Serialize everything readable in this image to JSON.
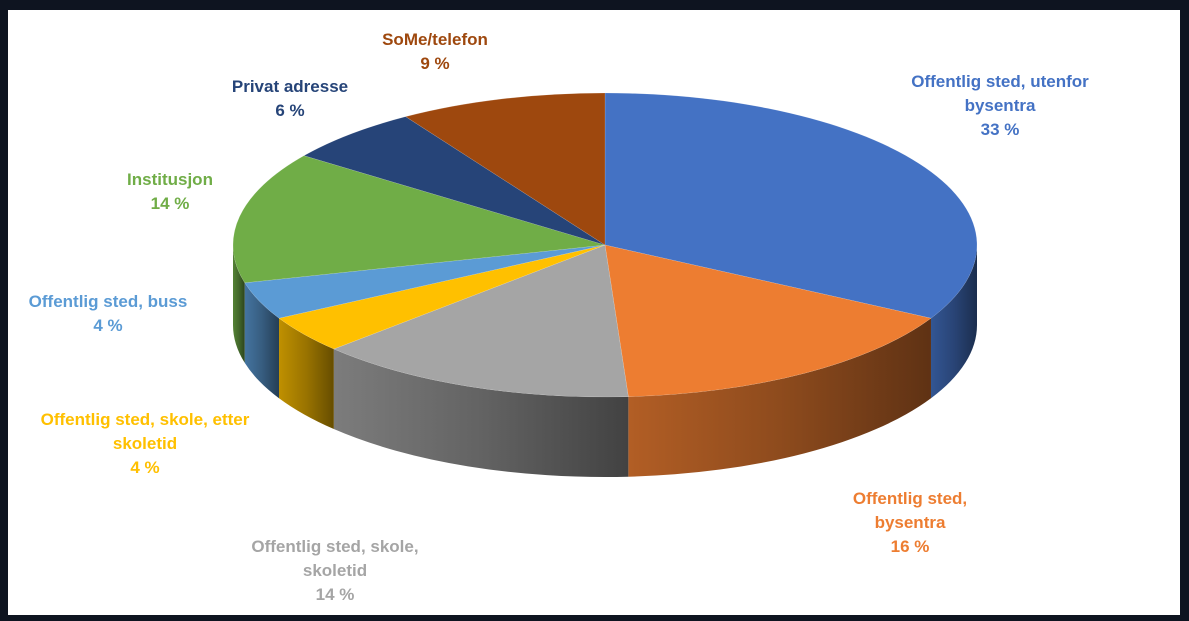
{
  "chart_data": {
    "type": "pie",
    "categories": [
      "Offentlig sted, utenfor bysentra",
      "Offentlig sted, bysentra",
      "Offentlig sted, skole, skoletid",
      "Offentlig sted, skole, etter skoletid",
      "Offentlig sted, buss",
      "Institusjon",
      "Privat adresse",
      "SoMe/telefon"
    ],
    "values": [
      33,
      16,
      14,
      4,
      4,
      14,
      6,
      9
    ],
    "value_labels": [
      "33 %",
      "16 %",
      "14 %",
      "4 %",
      "4 %",
      "14 %",
      "6 %",
      "9 %"
    ],
    "colors": [
      "#4472c4",
      "#ed7d31",
      "#a5a5a5",
      "#ffc000",
      "#5b9bd5",
      "#70ad47",
      "#264478",
      "#9e480e"
    ]
  }
}
